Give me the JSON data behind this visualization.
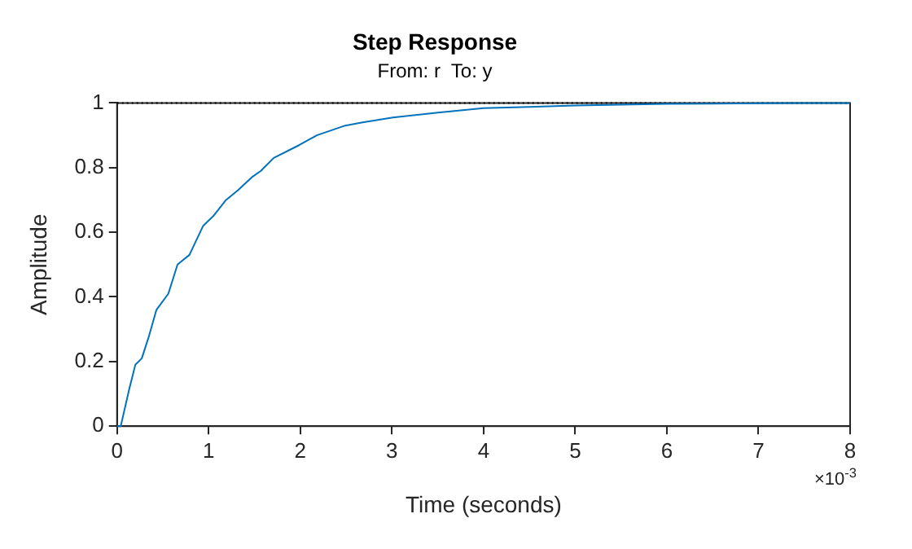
{
  "chart_data": {
    "type": "line",
    "title": "Step Response",
    "subtitle": "From: r  To: y",
    "xlabel": "Time (seconds)",
    "ylabel": "Amplitude",
    "x": [
      0,
      0.04,
      0.135,
      0.2,
      0.27,
      0.35,
      0.43,
      0.56,
      0.66,
      0.79,
      0.94,
      1.05,
      1.19,
      1.32,
      1.47,
      1.57,
      1.71,
      1.99,
      2.18,
      2.49,
      2.68,
      3.01,
      3.5,
      4,
      4.5,
      5,
      5.5,
      6,
      6.5,
      7,
      7.5,
      8
    ],
    "series": [
      {
        "color": "#0072bd",
        "values": [
          0,
          0.0,
          0.117,
          0.19,
          0.21,
          0.28,
          0.36,
          0.41,
          0.5,
          0.53,
          0.62,
          0.65,
          0.7,
          0.73,
          0.77,
          0.79,
          0.83,
          0.87,
          0.9,
          0.93,
          0.94,
          0.955,
          0.97,
          0.984,
          0.988,
          0.992,
          0.995,
          0.997,
          0.998,
          0.999,
          1,
          1
        ]
      }
    ],
    "xlim": [
      0,
      8
    ],
    "xticks": [
      0,
      1,
      2,
      3,
      4,
      5,
      6,
      7,
      8
    ],
    "ylim": [
      0,
      1
    ],
    "yticks": [
      0,
      0.2,
      0.4,
      0.6,
      0.8,
      1
    ],
    "grid": false,
    "legend": false,
    "marker": "none",
    "line_style": "solid",
    "ref_lines": [
      {
        "axis": "y",
        "value": 1,
        "color": "#000000",
        "line_style": "dotted"
      }
    ],
    "annotations": [
      "×10$^{-3}$"
    ]
  }
}
